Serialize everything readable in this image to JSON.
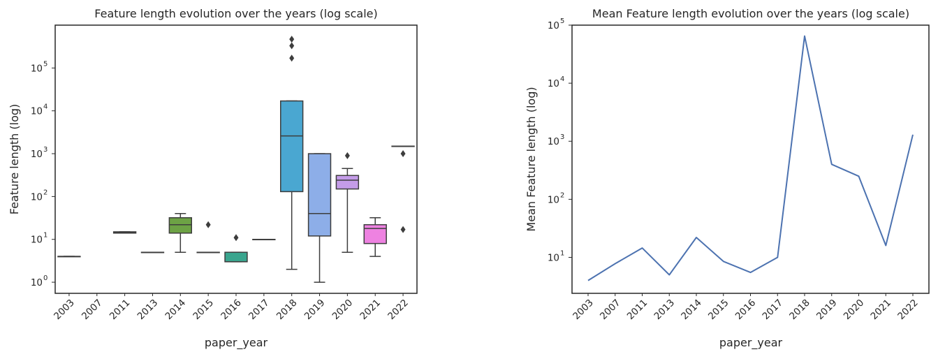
{
  "chart_data": [
    {
      "type": "box",
      "title": "Feature length evolution over the years (log scale)",
      "xlabel": "paper_year",
      "ylabel": "Feature length (log)",
      "yscale": "log",
      "ylim": [
        0.55,
        1000000
      ],
      "yticks": [
        1,
        10,
        100,
        1000,
        10000,
        100000
      ],
      "grid": false,
      "categories": [
        "2003",
        "2007",
        "2011",
        "2013",
        "2014",
        "2015",
        "2016",
        "2017",
        "2018",
        "2019",
        "2020",
        "2021",
        "2022"
      ],
      "boxes": [
        {
          "year": "2003",
          "min": 4,
          "q1": 4,
          "median": 4,
          "q3": 4,
          "max": 4,
          "outliers": [],
          "color": "#3a6aa9"
        },
        {
          "year": "2007",
          "min": null,
          "q1": null,
          "median": null,
          "q3": null,
          "max": null,
          "outliers": [],
          "color": "#b07a3a"
        },
        {
          "year": "2011",
          "min": 14,
          "q1": 14,
          "median": 14.5,
          "q3": 15,
          "max": 15,
          "outliers": [],
          "color": "#4f9a5d"
        },
        {
          "year": "2013",
          "min": 5,
          "q1": 5,
          "median": 5,
          "q3": 5,
          "max": 5,
          "outliers": [],
          "color": "#b84c4c"
        },
        {
          "year": "2014",
          "min": 5,
          "q1": 14,
          "median": 22,
          "q3": 32,
          "max": 40,
          "outliers": [],
          "color": "#6da245"
        },
        {
          "year": "2015",
          "min": 5,
          "q1": 5,
          "median": 5,
          "q3": 5,
          "max": 5,
          "outliers": [
            22
          ],
          "color": "#8c8c8c"
        },
        {
          "year": "2016",
          "min": 3,
          "q1": 3,
          "median": 3,
          "q3": 5,
          "max": 5,
          "outliers": [
            11
          ],
          "color": "#3aa58e"
        },
        {
          "year": "2017",
          "min": 10,
          "q1": 10,
          "median": 10,
          "q3": 10,
          "max": 10,
          "outliers": [],
          "color": "#9a9a9a"
        },
        {
          "year": "2018",
          "min": 2,
          "q1": 130,
          "median": 2600,
          "q3": 17000,
          "max": 17000,
          "outliers": [
            170000,
            330000,
            470000
          ],
          "color": "#4aa7d1"
        },
        {
          "year": "2019",
          "min": 1,
          "q1": 12,
          "median": 40,
          "q3": 1000,
          "max": 1000,
          "outliers": [],
          "color": "#8daee8"
        },
        {
          "year": "2020",
          "min": 5,
          "q1": 150,
          "median": 240,
          "q3": 310,
          "max": 450,
          "outliers": [
            900
          ],
          "color": "#c49ce8"
        },
        {
          "year": "2021",
          "min": 4,
          "q1": 8,
          "median": 18,
          "q3": 22,
          "max": 32,
          "outliers": [],
          "color": "#ee82e1"
        },
        {
          "year": "2022",
          "min": 1500,
          "q1": 1500,
          "median": 1500,
          "q3": 1500,
          "max": 1500,
          "outliers": [
            1000,
            17
          ],
          "color": "#c0c0c0"
        }
      ]
    },
    {
      "type": "line",
      "title": "Mean Feature length evolution over the years (log scale)",
      "xlabel": "paper_year",
      "ylabel": "Mean Feature length (log)",
      "yscale": "log",
      "ylim": [
        2.4,
        100000
      ],
      "yticks": [
        10,
        100,
        1000,
        10000,
        100000
      ],
      "grid": false,
      "categories": [
        "2003",
        "2007",
        "2011",
        "2013",
        "2014",
        "2015",
        "2016",
        "2017",
        "2018",
        "2019",
        "2020",
        "2021",
        "2022"
      ],
      "series": [
        {
          "values": [
            4,
            7.8,
            14.5,
            5,
            22,
            8.5,
            5.5,
            10,
            65000,
            400,
            250,
            16,
            1300
          ],
          "color": "#4c72b0"
        }
      ]
    }
  ]
}
